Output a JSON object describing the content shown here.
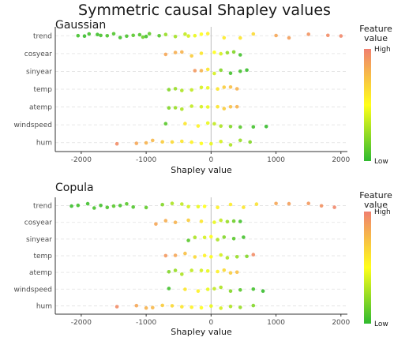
{
  "title": "Symmetric causal Shapley values",
  "chart_data": [
    {
      "type": "scatter",
      "title": "Gaussian",
      "xlabel": "Shapley value",
      "xlim": [
        -2400,
        2100
      ],
      "xticks": [
        -2000,
        -1000,
        0,
        1000,
        2000
      ],
      "categories": [
        "trend",
        "cosyear",
        "sinyear",
        "temp",
        "atemp",
        "windspeed",
        "hum"
      ],
      "legend": {
        "title": "Feature value",
        "high": "High",
        "low": "Low",
        "position": "right",
        "colors": [
          "#2fba2f",
          "#ffff1a",
          "#f08070"
        ]
      },
      "series": [
        {
          "feature": "trend",
          "points": [
            [
              -2050,
              0.05
            ],
            [
              -1950,
              0.03
            ],
            [
              -1880,
              0.05
            ],
            [
              -1750,
              0.04
            ],
            [
              -1700,
              0.06
            ],
            [
              -1600,
              0.07
            ],
            [
              -1500,
              0.08
            ],
            [
              -1400,
              0.05
            ],
            [
              -1300,
              0.06
            ],
            [
              -1200,
              0.1
            ],
            [
              -1100,
              0.08
            ],
            [
              -1050,
              0.15
            ],
            [
              -1000,
              0.05
            ],
            [
              -950,
              0.12
            ],
            [
              -800,
              0.08
            ],
            [
              -700,
              0.25
            ],
            [
              -550,
              0.28
            ],
            [
              -400,
              0.35
            ],
            [
              -350,
              0.4
            ],
            [
              -250,
              0.45
            ],
            [
              -150,
              0.5
            ],
            [
              -50,
              0.55
            ],
            [
              200,
              0.58
            ],
            [
              450,
              0.6
            ],
            [
              650,
              0.65
            ],
            [
              1000,
              0.85
            ],
            [
              1200,
              0.88
            ],
            [
              1500,
              0.92
            ],
            [
              1800,
              0.95
            ],
            [
              2000,
              0.97
            ]
          ]
        },
        {
          "feature": "cosyear",
          "points": [
            [
              -700,
              0.85
            ],
            [
              -550,
              0.82
            ],
            [
              -450,
              0.8
            ],
            [
              -300,
              0.7
            ],
            [
              -150,
              0.6
            ],
            [
              50,
              0.5
            ],
            [
              150,
              0.4
            ],
            [
              250,
              0.25
            ],
            [
              350,
              0.2
            ],
            [
              450,
              0.05
            ]
          ]
        },
        {
          "feature": "sinyear",
          "points": [
            [
              -250,
              0.9
            ],
            [
              -150,
              0.8
            ],
            [
              -50,
              0.6
            ],
            [
              50,
              0.4
            ],
            [
              150,
              0.2
            ],
            [
              300,
              0.05
            ],
            [
              450,
              0.05
            ],
            [
              550,
              0.03
            ]
          ]
        },
        {
          "feature": "temp",
          "points": [
            [
              -650,
              0.2
            ],
            [
              -550,
              0.25
            ],
            [
              -450,
              0.3
            ],
            [
              -300,
              0.35
            ],
            [
              -150,
              0.4
            ],
            [
              -50,
              0.45
            ],
            [
              100,
              0.6
            ],
            [
              200,
              0.7
            ],
            [
              300,
              0.75
            ],
            [
              400,
              0.8
            ]
          ]
        },
        {
          "feature": "atemp",
          "points": [
            [
              -650,
              0.2
            ],
            [
              -550,
              0.25
            ],
            [
              -450,
              0.3
            ],
            [
              -300,
              0.35
            ],
            [
              -150,
              0.4
            ],
            [
              -50,
              0.45
            ],
            [
              100,
              0.6
            ],
            [
              200,
              0.7
            ],
            [
              300,
              0.75
            ],
            [
              400,
              0.8
            ]
          ]
        },
        {
          "feature": "windspeed",
          "points": [
            [
              -700,
              0.1
            ],
            [
              -400,
              0.6
            ],
            [
              -200,
              0.55
            ],
            [
              -50,
              0.45
            ],
            [
              50,
              0.35
            ],
            [
              150,
              0.3
            ],
            [
              300,
              0.2
            ],
            [
              450,
              0.1
            ],
            [
              650,
              0.05
            ],
            [
              850,
              0.02
            ]
          ]
        },
        {
          "feature": "hum",
          "points": [
            [
              -1450,
              0.95
            ],
            [
              -1150,
              0.85
            ],
            [
              -1000,
              0.8
            ],
            [
              -900,
              0.78
            ],
            [
              -750,
              0.7
            ],
            [
              -600,
              0.65
            ],
            [
              -450,
              0.6
            ],
            [
              -300,
              0.55
            ],
            [
              -150,
              0.5
            ],
            [
              0,
              0.45
            ],
            [
              150,
              0.4
            ],
            [
              300,
              0.3
            ],
            [
              450,
              0.25
            ],
            [
              600,
              0.2
            ]
          ]
        }
      ]
    },
    {
      "type": "scatter",
      "title": "Copula",
      "xlabel": "Shapley value",
      "xlim": [
        -2400,
        2100
      ],
      "xticks": [
        -2000,
        -1000,
        0,
        1000,
        2000
      ],
      "categories": [
        "trend",
        "cosyear",
        "sinyear",
        "temp",
        "atemp",
        "windspeed",
        "hum"
      ],
      "legend": {
        "title": "Feature value",
        "high": "High",
        "low": "Low",
        "position": "right",
        "colors": [
          "#2fba2f",
          "#ffff1a",
          "#f08070"
        ]
      },
      "series": [
        {
          "feature": "trend",
          "points": [
            [
              -2150,
              0.03
            ],
            [
              -2050,
              0.05
            ],
            [
              -1900,
              0.04
            ],
            [
              -1800,
              0.06
            ],
            [
              -1700,
              0.05
            ],
            [
              -1600,
              0.07
            ],
            [
              -1500,
              0.1
            ],
            [
              -1400,
              0.06
            ],
            [
              -1300,
              0.1
            ],
            [
              -1200,
              0.08
            ],
            [
              -1000,
              0.12
            ],
            [
              -750,
              0.2
            ],
            [
              -600,
              0.3
            ],
            [
              -450,
              0.35
            ],
            [
              -350,
              0.4
            ],
            [
              -200,
              0.45
            ],
            [
              -100,
              0.5
            ],
            [
              100,
              0.55
            ],
            [
              300,
              0.58
            ],
            [
              500,
              0.6
            ],
            [
              700,
              0.62
            ],
            [
              1000,
              0.85
            ],
            [
              1200,
              0.88
            ],
            [
              1500,
              0.9
            ],
            [
              1700,
              0.93
            ],
            [
              1900,
              0.97
            ]
          ]
        },
        {
          "feature": "cosyear",
          "points": [
            [
              -850,
              0.85
            ],
            [
              -700,
              0.82
            ],
            [
              -550,
              0.8
            ],
            [
              -350,
              0.7
            ],
            [
              -150,
              0.6
            ],
            [
              50,
              0.45
            ],
            [
              150,
              0.35
            ],
            [
              250,
              0.25
            ],
            [
              350,
              0.15
            ],
            [
              450,
              0.05
            ]
          ]
        },
        {
          "feature": "sinyear",
          "points": [
            [
              -350,
              0.1
            ],
            [
              -250,
              0.3
            ],
            [
              -100,
              0.4
            ],
            [
              0,
              0.5
            ],
            [
              100,
              0.3
            ],
            [
              200,
              0.2
            ],
            [
              350,
              0.1
            ],
            [
              500,
              0.05
            ]
          ]
        },
        {
          "feature": "temp",
          "points": [
            [
              -700,
              0.9
            ],
            [
              -550,
              0.85
            ],
            [
              -400,
              0.75
            ],
            [
              -250,
              0.65
            ],
            [
              -100,
              0.55
            ],
            [
              0,
              0.5
            ],
            [
              150,
              0.4
            ],
            [
              250,
              0.3
            ],
            [
              400,
              0.25
            ],
            [
              550,
              0.2
            ],
            [
              650,
              0.95
            ]
          ]
        },
        {
          "feature": "atemp",
          "points": [
            [
              -650,
              0.2
            ],
            [
              -550,
              0.25
            ],
            [
              -450,
              0.3
            ],
            [
              -300,
              0.35
            ],
            [
              -150,
              0.4
            ],
            [
              -50,
              0.45
            ],
            [
              100,
              0.55
            ],
            [
              200,
              0.65
            ],
            [
              300,
              0.7
            ],
            [
              400,
              0.75
            ]
          ]
        },
        {
          "feature": "windspeed",
          "points": [
            [
              -650,
              0.05
            ],
            [
              -400,
              0.6
            ],
            [
              -200,
              0.55
            ],
            [
              -50,
              0.45
            ],
            [
              50,
              0.35
            ],
            [
              150,
              0.3
            ],
            [
              300,
              0.2
            ],
            [
              450,
              0.1
            ],
            [
              650,
              0.05
            ],
            [
              800,
              0.02
            ]
          ]
        },
        {
          "feature": "hum",
          "points": [
            [
              -1450,
              0.95
            ],
            [
              -1150,
              0.85
            ],
            [
              -1000,
              0.8
            ],
            [
              -900,
              0.78
            ],
            [
              -750,
              0.7
            ],
            [
              -600,
              0.65
            ],
            [
              -450,
              0.6
            ],
            [
              -300,
              0.55
            ],
            [
              -150,
              0.5
            ],
            [
              0,
              0.45
            ],
            [
              150,
              0.4
            ],
            [
              300,
              0.3
            ],
            [
              450,
              0.25
            ],
            [
              650,
              0.2
            ]
          ]
        }
      ]
    }
  ]
}
